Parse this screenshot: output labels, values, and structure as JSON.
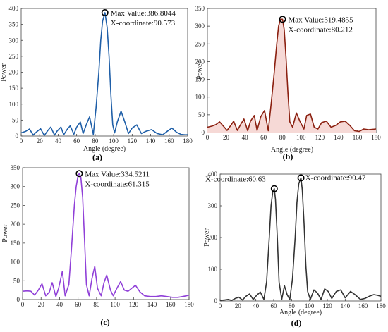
{
  "figure": {
    "captions": [
      "(a)",
      "(b)",
      "(c)",
      "(d)"
    ]
  },
  "chart_data": [
    {
      "type": "line",
      "caption": "(a)",
      "color": "#1f5fa8",
      "fill": "none",
      "xlabel": "Angle (degree)",
      "ylabel": "Power",
      "xlim": [
        0,
        180
      ],
      "ylim": [
        0,
        400
      ],
      "xticks": [
        0,
        20,
        40,
        60,
        80,
        100,
        120,
        140,
        160,
        180
      ],
      "yticks": [
        0,
        50,
        100,
        150,
        200,
        250,
        300,
        350,
        400
      ],
      "series": [
        {
          "x": [
            0,
            5,
            9,
            13,
            17,
            21,
            25,
            29,
            32,
            36,
            39,
            43,
            46,
            50,
            53,
            57,
            60,
            64,
            67,
            71,
            74,
            78,
            81,
            84,
            86,
            88,
            90.573,
            93,
            95,
            97,
            99,
            101,
            104,
            108,
            112,
            116,
            120,
            125,
            130,
            135,
            141,
            147,
            153,
            158,
            163,
            168,
            173,
            177,
            180
          ],
          "y": [
            10,
            15,
            22,
            3,
            14,
            23,
            2,
            18,
            28,
            3,
            16,
            28,
            4,
            22,
            32,
            6,
            28,
            44,
            8,
            40,
            60,
            5,
            90,
            200,
            300,
            360,
            386.8,
            340,
            250,
            130,
            35,
            10,
            45,
            78,
            45,
            8,
            25,
            35,
            8,
            15,
            20,
            8,
            4,
            15,
            25,
            12,
            5,
            4,
            4
          ]
        }
      ],
      "annotations": [
        {
          "x": 90.573,
          "y": 386.8044,
          "lines": [
            "Max Value:386.8044",
            "X-coordinate:90.573"
          ]
        }
      ]
    },
    {
      "type": "area",
      "caption": "(b)",
      "color": "#8b2010",
      "fill": "#f6d9d6",
      "xlabel": "Angle (degree)",
      "ylabel": "Power",
      "xlim": [
        0,
        180
      ],
      "ylim": [
        0,
        350
      ],
      "xticks": [
        0,
        20,
        40,
        60,
        80,
        100,
        120,
        140,
        160,
        180
      ],
      "yticks": [
        0,
        50,
        100,
        150,
        200,
        250,
        300,
        350
      ],
      "series": [
        {
          "x": [
            0,
            5,
            9,
            13,
            17,
            21,
            25,
            28,
            32,
            36,
            39,
            43,
            46,
            50,
            53,
            57,
            61,
            65,
            68,
            71,
            74,
            76,
            78,
            80.212,
            82,
            84,
            86,
            88,
            91,
            95,
            99,
            103,
            106,
            110,
            114,
            118,
            122,
            127,
            132,
            137,
            142,
            147,
            152,
            157,
            162,
            167,
            172,
            176,
            180
          ],
          "y": [
            15,
            18,
            22,
            30,
            18,
            6,
            20,
            32,
            6,
            25,
            38,
            5,
            32,
            48,
            6,
            45,
            62,
            5,
            80,
            160,
            250,
            300,
            319.5,
            319.5,
            290,
            210,
            110,
            30,
            15,
            55,
            30,
            10,
            48,
            52,
            15,
            10,
            28,
            32,
            15,
            20,
            30,
            32,
            20,
            5,
            3,
            10,
            8,
            9,
            10
          ]
        }
      ],
      "annotations": [
        {
          "x": 80.212,
          "y": 319.4855,
          "lines": [
            "Max Value:319.4855",
            "X-coordinate:80.212"
          ]
        }
      ]
    },
    {
      "type": "line",
      "caption": "(c)",
      "color": "#9040d8",
      "fill": "none",
      "xlabel": "",
      "ylabel": "Power",
      "xlim": [
        0,
        180
      ],
      "ylim": [
        0,
        350
      ],
      "xticks": [
        0,
        20,
        40,
        60,
        80,
        100,
        120,
        140,
        160,
        180
      ],
      "yticks": [
        0,
        50,
        100,
        150,
        200,
        250,
        300,
        350
      ],
      "series": [
        {
          "x": [
            0,
            5,
            9,
            13,
            17,
            21,
            25,
            29,
            32,
            36,
            39,
            43,
            46,
            50,
            53,
            56,
            58,
            60,
            61.315,
            63,
            65,
            67,
            69,
            72,
            75,
            78,
            81,
            85,
            88,
            91,
            95,
            98,
            102,
            106,
            110,
            114,
            118,
            122,
            127,
            132,
            138,
            144,
            150,
            156,
            162,
            168,
            173,
            177,
            180
          ],
          "y": [
            22,
            23,
            22,
            12,
            25,
            42,
            10,
            20,
            45,
            8,
            30,
            75,
            10,
            40,
            140,
            250,
            300,
            330,
            334.5,
            325,
            270,
            160,
            40,
            10,
            55,
            88,
            30,
            10,
            45,
            65,
            25,
            10,
            30,
            48,
            25,
            22,
            30,
            38,
            20,
            10,
            8,
            8,
            10,
            8,
            6,
            6,
            8,
            10,
            12
          ]
        }
      ],
      "annotations": [
        {
          "x": 61.315,
          "y": 334.5211,
          "lines": [
            "Max Value:334.5211",
            "X-coordinate:61.315"
          ]
        }
      ]
    },
    {
      "type": "line",
      "caption": "(d)",
      "color": "#333333",
      "fill": "none",
      "xlabel": "Angle (degree)",
      "ylabel": "Power",
      "xlim": [
        0,
        180
      ],
      "ylim": [
        0,
        400
      ],
      "xticks": [
        0,
        20,
        40,
        60,
        80,
        100,
        120,
        140,
        160,
        180
      ],
      "yticks": [
        0,
        100,
        200,
        300,
        400
      ],
      "series": [
        {
          "x": [
            0,
            5,
            9,
            13,
            17,
            21,
            25,
            29,
            33,
            37,
            41,
            45,
            49,
            52,
            55,
            57,
            59,
            60.63,
            62,
            64,
            66,
            69,
            72,
            75,
            78,
            81,
            84,
            86,
            88,
            90.47,
            92,
            94,
            96,
            98,
            101,
            105,
            109,
            113,
            117,
            121,
            125,
            130,
            135,
            140,
            146,
            151,
            157,
            162,
            167,
            172,
            176,
            180
          ],
          "y": [
            2,
            3,
            5,
            2,
            8,
            12,
            3,
            15,
            22,
            5,
            18,
            28,
            5,
            60,
            200,
            300,
            345,
            354,
            320,
            200,
            60,
            5,
            48,
            20,
            5,
            70,
            200,
            310,
            370,
            388,
            350,
            240,
            110,
            30,
            5,
            35,
            25,
            5,
            38,
            30,
            8,
            30,
            35,
            10,
            30,
            20,
            5,
            8,
            15,
            20,
            18,
            15
          ]
        }
      ],
      "annotations": [
        {
          "x": 60.63,
          "y": 354,
          "lines": [
            "X-coordinate:60.63"
          ]
        },
        {
          "x": 90.47,
          "y": 388,
          "lines": [
            "X-coordinate:90.47"
          ]
        }
      ]
    }
  ]
}
